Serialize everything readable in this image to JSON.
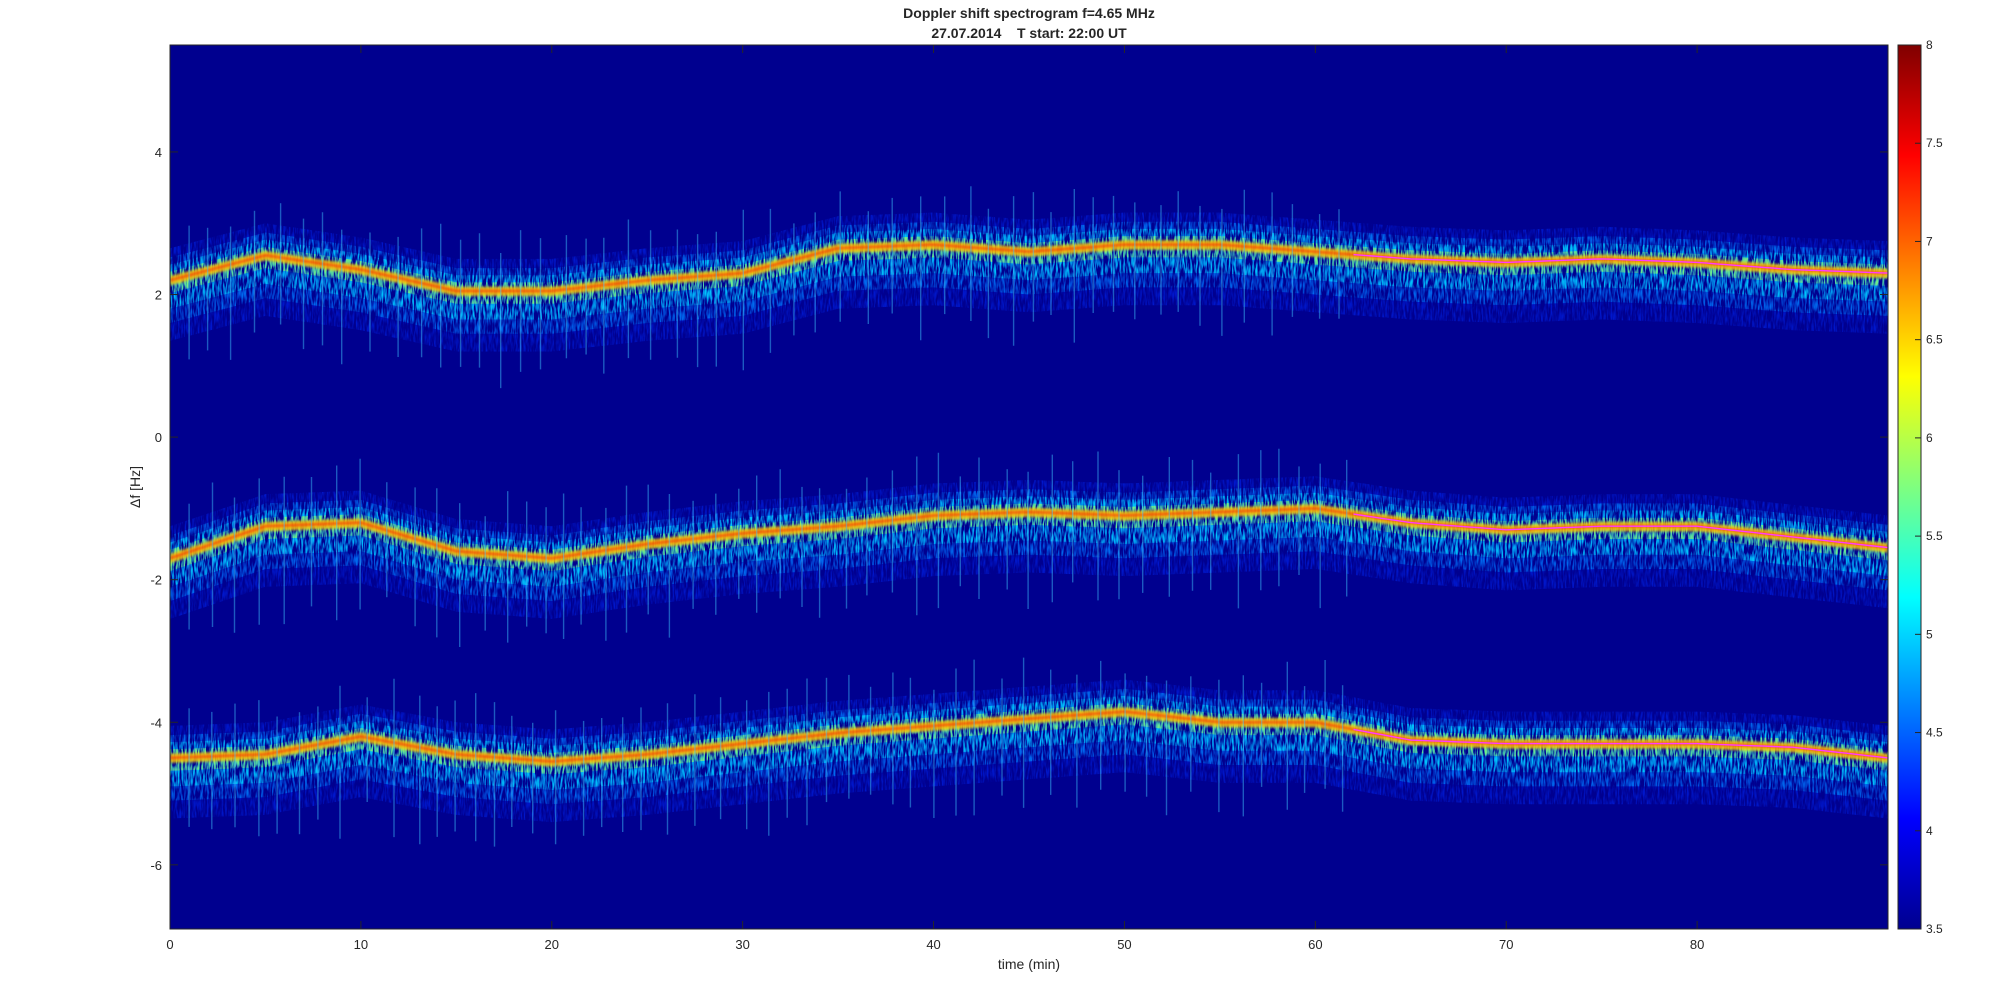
{
  "chart_data": {
    "type": "heatmap",
    "title": "Doppler shift spectrogram f=4.65 MHz",
    "subtitle": "27.07.2014    T start: 22:00 UT",
    "xlabel": "time (min)",
    "ylabel": "Δf [Hz]",
    "xlim": [
      0,
      90
    ],
    "ylim": [
      -6.9,
      5.5
    ],
    "xticks": [
      0,
      10,
      20,
      30,
      40,
      50,
      60,
      70,
      80
    ],
    "yticks": [
      -6,
      -4,
      -2,
      0,
      2,
      4
    ],
    "colorbar": {
      "colormap": "jet",
      "range": [
        3.5,
        8
      ],
      "ticks": [
        3.5,
        4,
        4.5,
        5,
        5.5,
        6,
        6.5,
        7,
        7.5,
        8
      ]
    },
    "background_color": "#00008f",
    "traces": [
      {
        "band": "upper",
        "time": [
          0,
          5,
          10,
          15,
          20,
          25,
          30,
          35,
          40,
          45,
          50,
          55,
          60,
          65,
          70,
          75,
          80,
          85,
          90
        ],
        "delta_f": [
          2.2,
          2.55,
          2.35,
          2.05,
          2.05,
          2.2,
          2.3,
          2.65,
          2.7,
          2.6,
          2.7,
          2.7,
          2.6,
          2.5,
          2.45,
          2.5,
          2.45,
          2.35,
          2.3
        ]
      },
      {
        "band": "middle",
        "time": [
          0,
          5,
          10,
          15,
          20,
          25,
          30,
          35,
          40,
          45,
          50,
          55,
          60,
          65,
          70,
          75,
          80,
          85,
          90
        ],
        "delta_f": [
          -1.7,
          -1.25,
          -1.2,
          -1.6,
          -1.7,
          -1.5,
          -1.35,
          -1.25,
          -1.1,
          -1.05,
          -1.1,
          -1.05,
          -1.0,
          -1.2,
          -1.3,
          -1.25,
          -1.25,
          -1.4,
          -1.55
        ]
      },
      {
        "band": "lower",
        "time": [
          0,
          5,
          10,
          15,
          20,
          25,
          30,
          35,
          40,
          45,
          50,
          55,
          60,
          65,
          70,
          75,
          80,
          85,
          90
        ],
        "delta_f": [
          -4.5,
          -4.45,
          -4.2,
          -4.45,
          -4.55,
          -4.45,
          -4.3,
          -4.15,
          -4.05,
          -3.95,
          -3.85,
          -4.0,
          -4.0,
          -4.25,
          -4.3,
          -4.3,
          -4.3,
          -4.35,
          -4.5
        ]
      }
    ],
    "model_overlay": {
      "color": "#ff3cff",
      "start_time": 62
    }
  }
}
